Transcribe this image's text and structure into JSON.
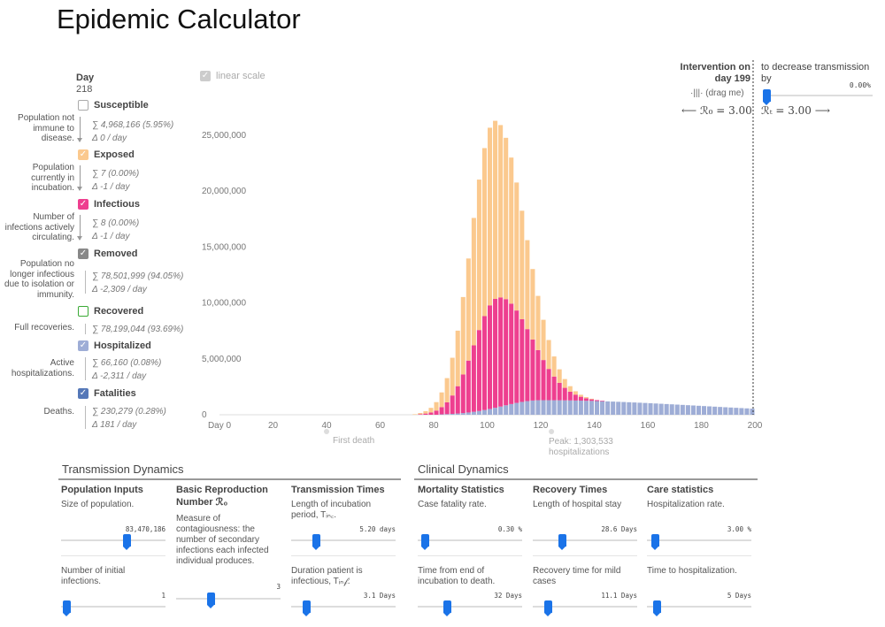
{
  "title": "Epidemic Calculator",
  "day": {
    "label": "Day",
    "value": "218"
  },
  "legend": [
    {
      "name": "Susceptible",
      "desc": [
        "Population not",
        "immune to",
        "disease."
      ],
      "stat1": "∑  4,968,166 (5.95%)",
      "stat2": "Δ  0 / day",
      "color": "#ffffff",
      "checked": false
    },
    {
      "name": "Exposed",
      "desc": [
        "Population",
        "currently in",
        "incubation."
      ],
      "stat1": "∑  7 (0.00%)",
      "stat2": "Δ  -1 / day",
      "color": "#fbc98e",
      "checked": true
    },
    {
      "name": "Infectious",
      "desc": [
        "Number of",
        "infections actively",
        "circulating."
      ],
      "stat1": "∑  8 (0.00%)",
      "stat2": "Δ  -1 / day",
      "color": "#ee3f8f",
      "checked": true
    },
    {
      "name": "Removed",
      "desc": [
        "Population no",
        "longer infectious",
        "due to isolation or",
        "immunity."
      ],
      "stat1": "∑  78,501,999 (94.05%)",
      "stat2": "Δ  -2,309 / day",
      "color": "#888888",
      "checked": true
    },
    {
      "name": "Recovered",
      "desc": [
        "Full recoveries."
      ],
      "stat1": "∑  78,199,044 (93.69%)",
      "stat2": "",
      "color": "#ffffff",
      "checked": false
    },
    {
      "name": "Hospitalized",
      "desc": [
        "Active",
        "hospitalizations."
      ],
      "stat1": "∑  66,160 (0.08%)",
      "stat2": "Δ  -2,311 / day",
      "color": "#9eadd6",
      "checked": true
    },
    {
      "name": "Fatalities",
      "desc": [
        "Deaths."
      ],
      "stat1": "∑  230,279 (0.28%)",
      "stat2": "Δ  181 / day",
      "color": "#5578b8",
      "checked": true
    }
  ],
  "chart_controls": {
    "linear_scale": "linear scale",
    "intervention": [
      "Intervention on",
      "day 199"
    ],
    "drag": "(drag me)",
    "r0": "⟵ ℛ₀ = 3.00",
    "rt": "ℛₜ = 3.00 ⟶",
    "decrease": [
      "to decrease transmission",
      "by"
    ],
    "decrease_pct": "0.00%",
    "first_death": "First death",
    "peak": [
      "Peak: 1,303,533",
      "hospitalizations"
    ]
  },
  "chart_data": {
    "type": "bar",
    "stacked": true,
    "x_range": [
      0,
      200
    ],
    "ylim": [
      0,
      27000000
    ],
    "y_ticks": [
      0,
      5000000,
      10000000,
      15000000,
      20000000,
      25000000
    ],
    "y_tick_labels": [
      "0",
      "5,000,000",
      "10,000,000",
      "15,000,000",
      "20,000,000",
      "25,000,000"
    ],
    "x_tick_labels": [
      "Day 0",
      "20",
      "40",
      "60",
      "80",
      "100",
      "120",
      "140",
      "160",
      "180",
      "200"
    ],
    "x_ticks": [
      0,
      20,
      40,
      60,
      80,
      100,
      120,
      140,
      160,
      180,
      200
    ],
    "intervention_day": 199,
    "peak_day": 103,
    "series": [
      {
        "name": "Hospitalized",
        "color": "#9eadd6",
        "peak": 1303533,
        "peak_day": 120
      },
      {
        "name": "Infectious",
        "color": "#ee3f8f",
        "peak": 9800000,
        "peak_day": 104
      },
      {
        "name": "Exposed",
        "color": "#fbc98e",
        "peak": 16000000,
        "peak_day": 102
      }
    ]
  },
  "panels": {
    "transmission_title": "Transmission Dynamics",
    "clinical_title": "Clinical Dynamics",
    "controls": [
      {
        "title": "Population Inputs",
        "desc": [
          "Size of population."
        ],
        "value": "83,470,186",
        "pos": 0.62
      },
      {
        "title": "Basic Reproduction",
        "title2": "Number ℛ₀",
        "desc": [
          "Measure of",
          "contagiousness: the",
          "number of secondary",
          "infections each infected",
          "individual produces."
        ],
        "value": "3",
        "pos": 0.3
      },
      {
        "title": "Transmission Times",
        "desc": [
          "Length of incubation",
          "period, Tᵢₙ꜀."
        ],
        "value": "5.20 days",
        "pos": 0.2
      },
      {
        "title": "Mortality Statistics",
        "desc": [
          "Case fatality rate."
        ],
        "value": "0.30 %",
        "pos": 0.02
      },
      {
        "title": "Recovery Times",
        "desc": [
          "Length of hospital stay"
        ],
        "value": "28.6 Days",
        "pos": 0.25
      },
      {
        "title": "Care statistics",
        "desc": [
          "Hospitalization rate."
        ],
        "value": "3.00 %",
        "pos": 0.03
      },
      {
        "title": "",
        "desc": [
          "Number of initial",
          "infections."
        ],
        "value": "1",
        "pos": 0.0
      },
      {
        "title": "",
        "desc": [
          "Duration patient is",
          "infectious, Tᵢₙ𝒻."
        ],
        "value": "3.1 Days",
        "pos": 0.1
      },
      {
        "title": "",
        "desc": [
          "Time from end of",
          "incubation to death."
        ],
        "value": "32 Days",
        "pos": 0.25
      },
      {
        "title": "",
        "desc": [
          "Recovery time for mild",
          "cases"
        ],
        "value": "11.1 Days",
        "pos": 0.1
      },
      {
        "title": "",
        "desc": [
          "Time to hospitalization."
        ],
        "value": "5 Days",
        "pos": 0.05
      }
    ]
  }
}
